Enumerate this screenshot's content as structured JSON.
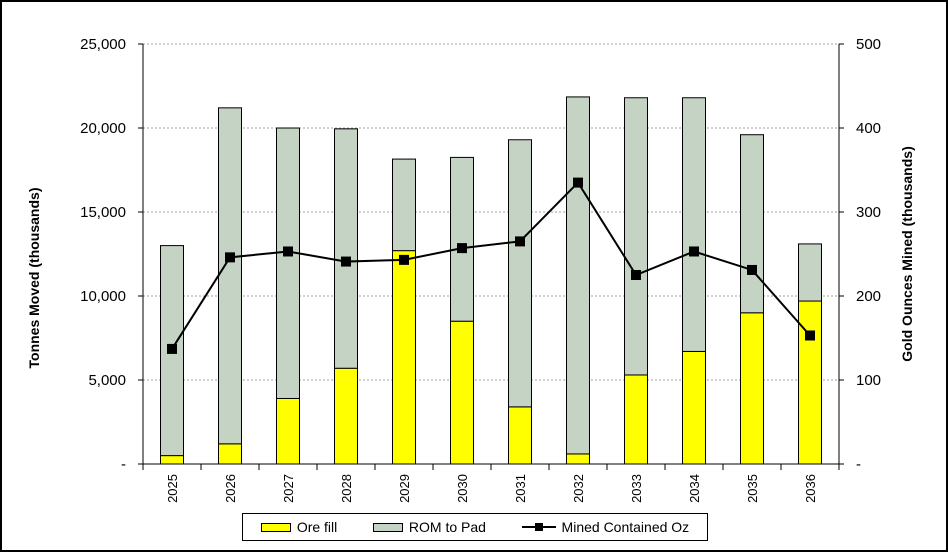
{
  "chart_data": {
    "type": "bar",
    "stacked": true,
    "categories": [
      "2025",
      "2026",
      "2027",
      "2028",
      "2029",
      "2030",
      "2031",
      "2032",
      "2033",
      "2034",
      "2035",
      "2036"
    ],
    "series": [
      {
        "name": "Ore fill",
        "type": "bar",
        "axis": "left",
        "color": "#ffff00",
        "values": [
          500,
          1200,
          3900,
          5700,
          12700,
          8500,
          3400,
          600,
          5300,
          6700,
          9000,
          9700
        ]
      },
      {
        "name": "ROM to Pad",
        "type": "bar",
        "axis": "left",
        "color": "#c5d3c5",
        "values": [
          12500,
          20000,
          16100,
          14250,
          5450,
          9750,
          15900,
          21250,
          16500,
          15100,
          10600,
          3400
        ]
      },
      {
        "name": "Mined Contained Oz",
        "type": "line",
        "axis": "right",
        "color": "#000000",
        "values": [
          137,
          246,
          253,
          241,
          243,
          257,
          265,
          335,
          225,
          253,
          231,
          153
        ]
      }
    ],
    "ylabel": "Tonnes Moved (thousands)",
    "y2label": "Gold Ounces Mined (thousands)",
    "ylim": [
      0,
      25000
    ],
    "y2lim": [
      0,
      500
    ],
    "yticks": [
      "-",
      "5,000",
      "10,000",
      "15,000",
      "20,000",
      "25,000"
    ],
    "y2ticks": [
      "-",
      "100",
      "200",
      "300",
      "400",
      "500"
    ],
    "grid": true,
    "legend_position": "bottom"
  }
}
